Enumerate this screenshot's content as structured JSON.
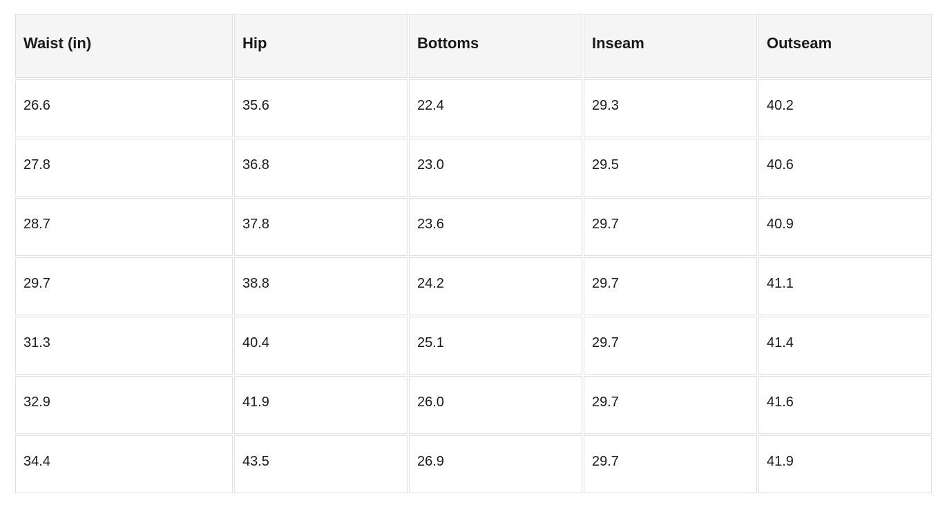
{
  "chart_data": {
    "type": "table",
    "columns": [
      "Waist (in)",
      "Hip",
      "Bottoms",
      "Inseam",
      "Outseam"
    ],
    "rows": [
      [
        "26.6",
        "35.6",
        "22.4",
        "29.3",
        "40.2"
      ],
      [
        "27.8",
        "36.8",
        "23.0",
        "29.5",
        "40.6"
      ],
      [
        "28.7",
        "37.8",
        "23.6",
        "29.7",
        "40.9"
      ],
      [
        "29.7",
        "38.8",
        "24.2",
        "29.7",
        "41.1"
      ],
      [
        "31.3",
        "40.4",
        "25.1",
        "29.7",
        "41.4"
      ],
      [
        "32.9",
        "41.9",
        "26.0",
        "29.7",
        "41.6"
      ],
      [
        "34.4",
        "43.5",
        "26.9",
        "29.7",
        "41.9"
      ]
    ]
  },
  "colors": {
    "header_bg": "#f5f5f5",
    "border": "#e0e0e0",
    "text": "#1a1a1a",
    "page_bg": "#ffffff"
  }
}
